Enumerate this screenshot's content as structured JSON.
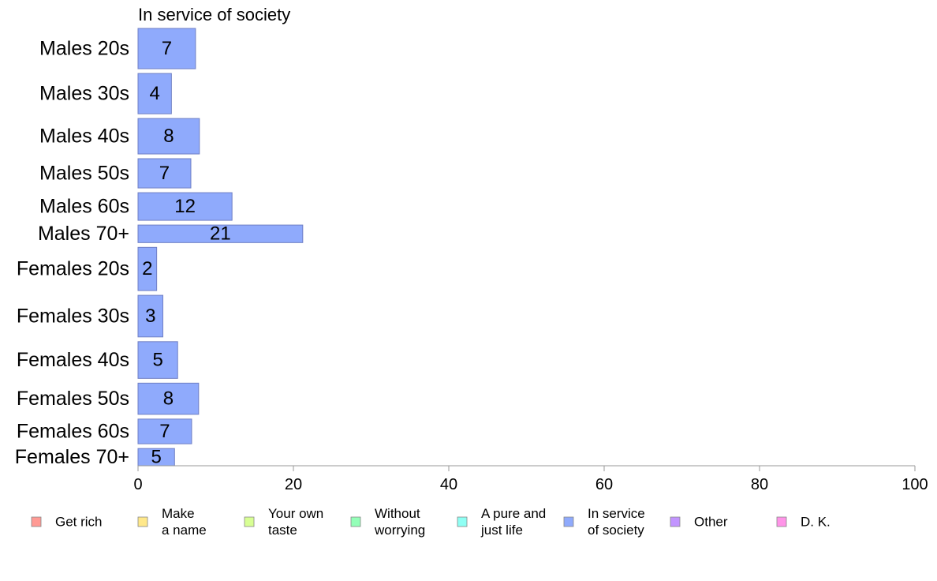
{
  "chart_data": {
    "type": "bar",
    "orientation": "horizontal",
    "title": "In service of society",
    "categories": [
      "Males 20s",
      "Males 30s",
      "Males 40s",
      "Males 50s",
      "Males 60s",
      "Males 70+",
      "Females 20s",
      "Females 30s",
      "Females 40s",
      "Females 50s",
      "Females 60s",
      "Females 70+"
    ],
    "values": [
      7.4,
      4.3,
      7.9,
      6.8,
      12.1,
      21.2,
      2.4,
      3.2,
      5.1,
      7.8,
      6.9,
      4.7
    ],
    "value_labels": [
      "7",
      "4",
      "8",
      "7",
      "12",
      "21",
      "2",
      "3",
      "5",
      "8",
      "7",
      "5"
    ],
    "row_weights": [
      1.24,
      1.24,
      1.09,
      0.9,
      0.85,
      0.54,
      1.33,
      1.28,
      1.13,
      0.96,
      0.76,
      0.53
    ],
    "xlim": [
      0,
      100
    ],
    "xticks": [
      "0",
      "20",
      "40",
      "60",
      "80",
      "100"
    ],
    "bar_color": "#8faafc",
    "bar_border": "#6f7fc4",
    "grid": false,
    "legend_position": "bottom",
    "legend": [
      {
        "lines": [
          "Get rich"
        ],
        "color": "#ff9a94"
      },
      {
        "lines": [
          "Make",
          "a name"
        ],
        "color": "#ffe88a"
      },
      {
        "lines": [
          "Your own",
          "taste"
        ],
        "color": "#d8ff94"
      },
      {
        "lines": [
          "Without",
          "worrying"
        ],
        "color": "#94ffb8"
      },
      {
        "lines": [
          "A pure and",
          "just life"
        ],
        "color": "#8ffff4"
      },
      {
        "lines": [
          "In service",
          "of society"
        ],
        "color": "#8faafc"
      },
      {
        "lines": [
          "Other"
        ],
        "color": "#c294ff"
      },
      {
        "lines": [
          "D. K."
        ],
        "color": "#ff94e8"
      }
    ]
  }
}
